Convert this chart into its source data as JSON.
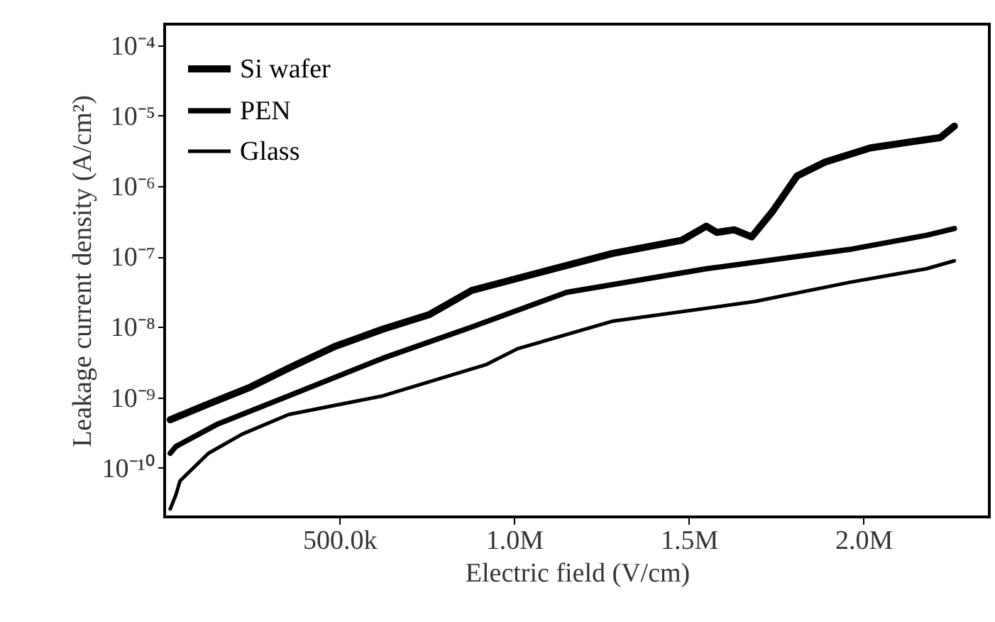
{
  "chart_data": {
    "type": "line",
    "xlabel": "Electric field (V/cm)",
    "ylabel": "Leakage current density (A/cm²)",
    "log": "y",
    "xlim": [
      0,
      2360000
    ],
    "ylim": [
      2e-11,
      0.0002
    ],
    "xticks": [
      {
        "value": 500000,
        "label": "500.0k"
      },
      {
        "value": 1000000,
        "label": "1.0M"
      },
      {
        "value": 1500000,
        "label": "1.5M"
      },
      {
        "value": 2000000,
        "label": "2.0M"
      }
    ],
    "yticks": [
      {
        "value": 1e-10,
        "label": "10⁻¹⁰"
      },
      {
        "value": 1e-09,
        "label": "10⁻⁹"
      },
      {
        "value": 1e-08,
        "label": "10⁻⁸"
      },
      {
        "value": 1e-07,
        "label": "10⁻⁷"
      },
      {
        "value": 1e-06,
        "label": "10⁻⁶"
      },
      {
        "value": 1e-05,
        "label": "10⁻⁵"
      },
      {
        "value": 0.0001,
        "label": "10⁻⁴"
      }
    ],
    "grid": false,
    "legend": "top left",
    "marker": "none",
    "line_style": "solid",
    "series": [
      {
        "name": "Si wafer",
        "color": "#000000",
        "x": [
          16000,
          113000,
          246000,
          355000,
          488000,
          625000,
          758000,
          879000,
          1010000,
          1280000,
          1480000,
          1550000,
          1580000,
          1630000,
          1680000,
          1740000,
          1810000,
          1890000,
          2020000,
          2220000,
          2260000
        ],
        "values": [
          4.8e-10,
          7.6e-10,
          1.4e-09,
          2.6e-09,
          5.3e-09,
          9.3e-09,
          1.5e-08,
          3.3e-08,
          4.9e-08,
          1.1e-07,
          1.7e-07,
          2.7e-07,
          2.2e-07,
          2.4e-07,
          1.9e-07,
          4.4e-07,
          1.4e-06,
          2.2e-06,
          3.5e-06,
          4.9e-06,
          7.1e-06
        ]
      },
      {
        "name": "PEN",
        "color": "#000000",
        "x": [
          16000,
          32000,
          153000,
          355000,
          625000,
          879000,
          1150000,
          1550000,
          1960000,
          2180000,
          2260000
        ],
        "values": [
          1.6e-10,
          2e-10,
          4.2e-10,
          1.05e-09,
          3.6e-09,
          1e-08,
          3.1e-08,
          6.7e-08,
          1.26e-07,
          2e-07,
          2.5e-07
        ]
      },
      {
        "name": "Glass",
        "color": "#000000",
        "x": [
          16000,
          32000,
          44000,
          125000,
          222000,
          355000,
          625000,
          919000,
          1010000,
          1280000,
          1690000,
          1960000,
          2180000,
          2260000
        ],
        "values": [
          2.6e-11,
          4.1e-11,
          6.5e-11,
          1.6e-10,
          3e-10,
          5.7e-10,
          1.05e-09,
          2.9e-09,
          4.9e-09,
          1.2e-08,
          2.3e-08,
          4.3e-08,
          6.7e-08,
          8.7e-08
        ]
      }
    ]
  }
}
